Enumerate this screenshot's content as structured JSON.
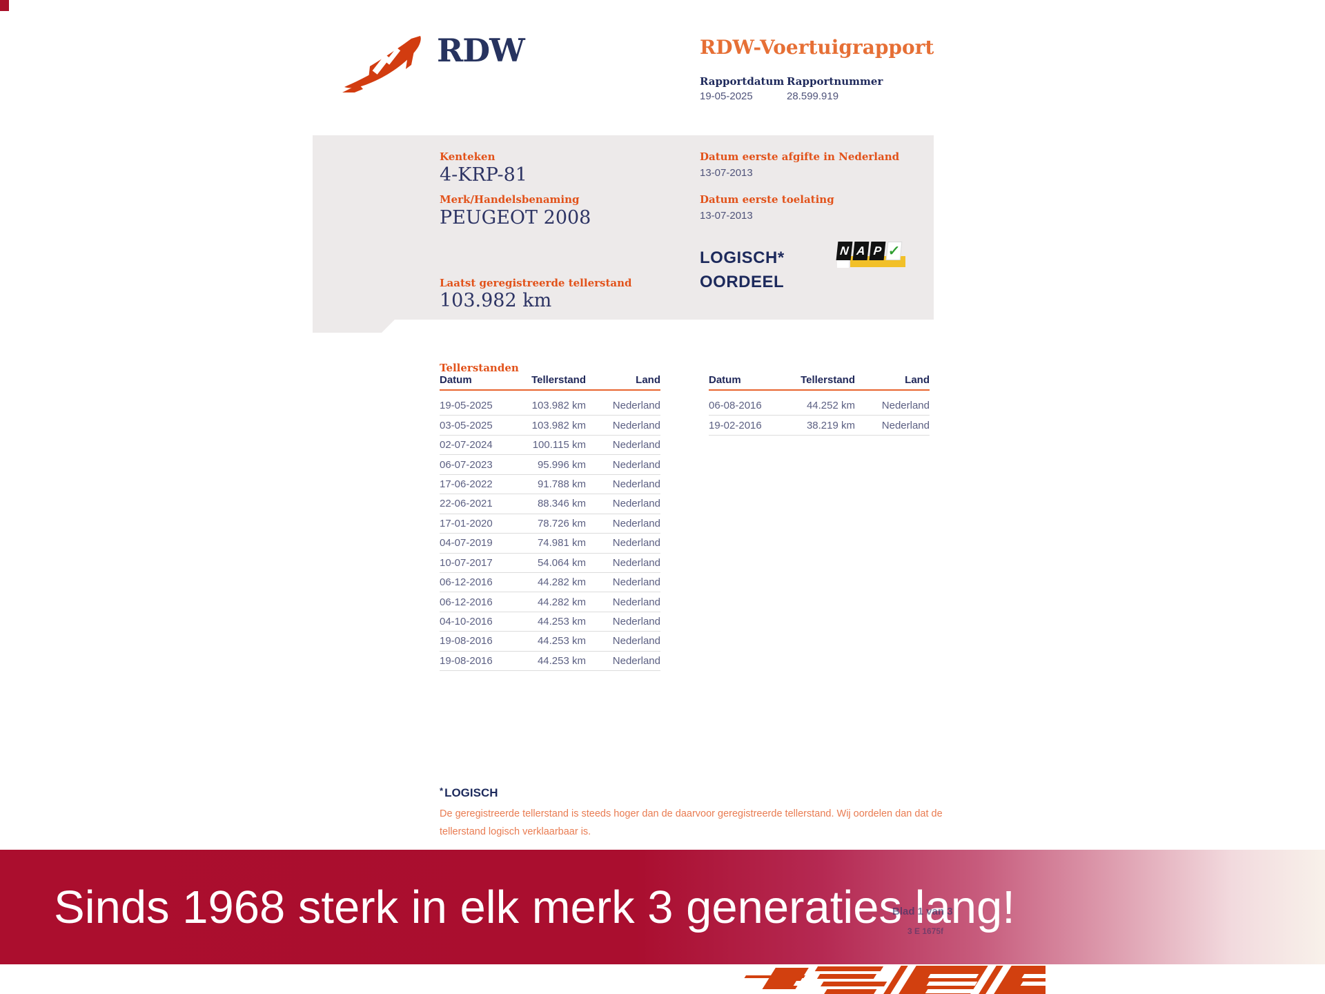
{
  "header": {
    "logo_text": "RDW",
    "title": "RDW-Voertuigrapport",
    "report_date_label": "Rapportdatum",
    "report_date": "19-05-2025",
    "report_number_label": "Rapportnummer",
    "report_number": "28.599.919"
  },
  "vehicle": {
    "kenteken_label": "Kenteken",
    "kenteken": "4-KRP-81",
    "merk_label": "Merk/Handelsbenaming",
    "merk": "PEUGEOT 2008",
    "tellerstand_label": "Laatst geregistreerde tellerstand",
    "tellerstand": "103.982 km",
    "afgifte_label": "Datum eerste afgifte in Nederland",
    "afgifte": "13-07-2013",
    "toelating_label": "Datum eerste toelating",
    "toelating": "13-07-2013",
    "oordeel_line1": "LOGISCH*",
    "oordeel_line2": "OORDEEL",
    "nap": {
      "letters": [
        "N",
        "A",
        "P"
      ],
      "check": "✓"
    }
  },
  "tellerstanden": {
    "section_title": "Tellerstanden",
    "columns": [
      "Datum",
      "Tellerstand",
      "Land"
    ],
    "left_rows": [
      {
        "datum": "19-05-2025",
        "tellerstand": "103.982 km",
        "land": "Nederland"
      },
      {
        "datum": "03-05-2025",
        "tellerstand": "103.982 km",
        "land": "Nederland"
      },
      {
        "datum": "02-07-2024",
        "tellerstand": "100.115 km",
        "land": "Nederland"
      },
      {
        "datum": "06-07-2023",
        "tellerstand": "95.996 km",
        "land": "Nederland"
      },
      {
        "datum": "17-06-2022",
        "tellerstand": "91.788 km",
        "land": "Nederland"
      },
      {
        "datum": "22-06-2021",
        "tellerstand": "88.346 km",
        "land": "Nederland"
      },
      {
        "datum": "17-01-2020",
        "tellerstand": "78.726 km",
        "land": "Nederland"
      },
      {
        "datum": "04-07-2019",
        "tellerstand": "74.981 km",
        "land": "Nederland"
      },
      {
        "datum": "10-07-2017",
        "tellerstand": "54.064 km",
        "land": "Nederland"
      },
      {
        "datum": "06-12-2016",
        "tellerstand": "44.282 km",
        "land": "Nederland"
      },
      {
        "datum": "06-12-2016",
        "tellerstand": "44.282 km",
        "land": "Nederland"
      },
      {
        "datum": "04-10-2016",
        "tellerstand": "44.253 km",
        "land": "Nederland"
      },
      {
        "datum": "19-08-2016",
        "tellerstand": "44.253 km",
        "land": "Nederland"
      },
      {
        "datum": "19-08-2016",
        "tellerstand": "44.253 km",
        "land": "Nederland"
      }
    ],
    "right_rows": [
      {
        "datum": "06-08-2016",
        "tellerstand": "44.252 km",
        "land": "Nederland"
      },
      {
        "datum": "19-02-2016",
        "tellerstand": "38.219 km",
        "land": "Nederland"
      }
    ]
  },
  "footnote": {
    "asterisk": "*",
    "title": "LOGISCH",
    "text": "De geregistreerde tellerstand is steeds hoger dan de daarvoor geregistreerde tellerstand. Wij oordelen dan dat de tellerstand logisch verklaarbaar is."
  },
  "banner": {
    "text": "Sinds 1968 sterk in elk merk 3 generaties lang!"
  },
  "fragments": {
    "page_indicator": "Blad 1 van 3",
    "form_code": "3 E 1675f"
  },
  "colors": {
    "rdw_orange": "#e2521a",
    "title_orange": "#e66f35",
    "navy": "#1f2a5c",
    "table_text": "#5b5f82",
    "box_gray": "#edeaea",
    "banner_red": "#ab0e2e",
    "logo_orange": "#d23c10",
    "nap_yellow": "#f2c028",
    "nap_green": "#2f9e2f"
  }
}
